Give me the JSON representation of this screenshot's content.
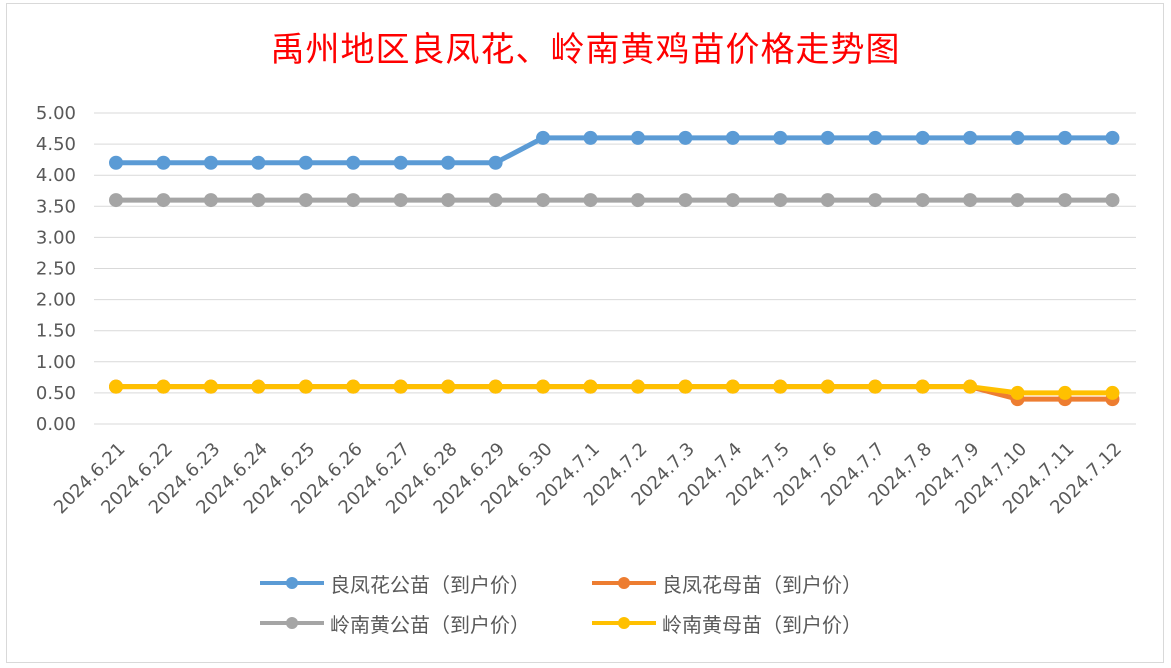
{
  "chart_data": {
    "type": "line",
    "title": "禹州地区良凤花、岭南黄鸡苗价格走势图",
    "xlabel": "",
    "ylabel": "",
    "ylim": [
      0,
      5
    ],
    "yticks": [
      "0.00",
      "0.50",
      "1.00",
      "1.50",
      "2.00",
      "2.50",
      "3.00",
      "3.50",
      "4.00",
      "4.50",
      "5.00"
    ],
    "grid": true,
    "legend_position": "bottom",
    "categories": [
      "2024.6.21",
      "2024.6.22",
      "2024.6.23",
      "2024.6.24",
      "2024.6.25",
      "2024.6.26",
      "2024.6.27",
      "2024.6.28",
      "2024.6.29",
      "2024.6.30",
      "2024.7.1",
      "2024.7.2",
      "2024.7.3",
      "2024.7.4",
      "2024.7.5",
      "2024.7.6",
      "2024.7.7",
      "2024.7.8",
      "2024.7.9",
      "2024.7.10",
      "2024.7.11",
      "2024.7.12"
    ],
    "series": [
      {
        "name": "良凤花公苗（到户价）",
        "color": "#5b9bd5",
        "values": [
          4.2,
          4.2,
          4.2,
          4.2,
          4.2,
          4.2,
          4.2,
          4.2,
          4.2,
          4.6,
          4.6,
          4.6,
          4.6,
          4.6,
          4.6,
          4.6,
          4.6,
          4.6,
          4.6,
          4.6,
          4.6,
          4.6
        ]
      },
      {
        "name": "良凤花母苗（到户价）",
        "color": "#ed7d31",
        "values": [
          0.6,
          0.6,
          0.6,
          0.6,
          0.6,
          0.6,
          0.6,
          0.6,
          0.6,
          0.6,
          0.6,
          0.6,
          0.6,
          0.6,
          0.6,
          0.6,
          0.6,
          0.6,
          0.6,
          0.4,
          0.4,
          0.4
        ]
      },
      {
        "name": "岭南黄公苗（到户价）",
        "color": "#a5a5a5",
        "values": [
          3.6,
          3.6,
          3.6,
          3.6,
          3.6,
          3.6,
          3.6,
          3.6,
          3.6,
          3.6,
          3.6,
          3.6,
          3.6,
          3.6,
          3.6,
          3.6,
          3.6,
          3.6,
          3.6,
          3.6,
          3.6,
          3.6
        ]
      },
      {
        "name": "岭南黄母苗（到户价）",
        "color": "#ffc000",
        "values": [
          0.6,
          0.6,
          0.6,
          0.6,
          0.6,
          0.6,
          0.6,
          0.6,
          0.6,
          0.6,
          0.6,
          0.6,
          0.6,
          0.6,
          0.6,
          0.6,
          0.6,
          0.6,
          0.6,
          0.5,
          0.5,
          0.5
        ]
      }
    ]
  }
}
